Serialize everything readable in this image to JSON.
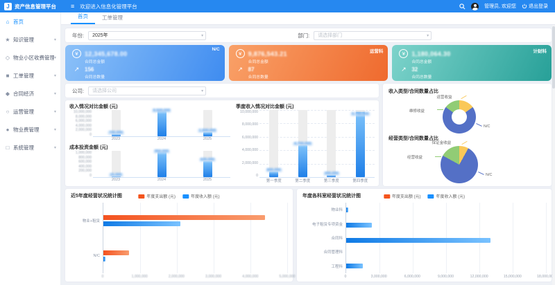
{
  "header": {
    "logo": "J",
    "app_title": "资产信息管理平台",
    "welcome": "欢迎进入信息化管理平台",
    "user": "管理员, 欢迎您",
    "logout": "退出登录"
  },
  "sidebar": {
    "items": [
      {
        "label": "首页",
        "icon": "home-icon",
        "glyph": "⌂",
        "active": true,
        "expandable": false
      },
      {
        "label": "知识管理",
        "icon": "star-icon",
        "glyph": "★",
        "active": false,
        "expandable": true
      },
      {
        "label": "物业小区收费管理",
        "icon": "diamond-outline-icon",
        "glyph": "◇",
        "active": false,
        "expandable": true
      },
      {
        "label": "工单管理",
        "icon": "square-icon",
        "glyph": "■",
        "active": false,
        "expandable": true
      },
      {
        "label": "合同经济",
        "icon": "diamond-icon",
        "glyph": "◆",
        "active": false,
        "expandable": true
      },
      {
        "label": "运营管理",
        "icon": "circle-outline-icon",
        "glyph": "○",
        "active": false,
        "expandable": true
      },
      {
        "label": "物业费管理",
        "icon": "circle-icon",
        "glyph": "●",
        "active": false,
        "expandable": true
      },
      {
        "label": "系统管理",
        "icon": "square-outline-icon",
        "glyph": "□",
        "active": false,
        "expandable": true
      }
    ]
  },
  "tabs": [
    {
      "label": "首页",
      "active": true
    },
    {
      "label": "工单管理",
      "active": false
    }
  ],
  "filters": {
    "year_label": "年份:",
    "year_value": "2025年",
    "dept_label": "部门:",
    "dept_placeholder": "请选择部门",
    "company_label": "公司:",
    "company_placeholder": "请选择公司"
  },
  "stat_cards": [
    {
      "theme": "blue",
      "badge": "N/C",
      "amount": "12,345,678.00",
      "amount_label": "合同总金额",
      "count": "156",
      "count_label": "合同总数量"
    },
    {
      "theme": "orange",
      "badge": "运营科",
      "amount": "9,876,543.21",
      "amount_label": "合同总金额",
      "count": "87",
      "count_label": "合同总数量"
    },
    {
      "theme": "teal",
      "badge": "计财科",
      "amount": "1,180,064.30",
      "amount_label": "合同总金额",
      "count": "32",
      "count_label": "合同总数量"
    }
  ],
  "chart_data": [
    {
      "id": "income-by-year",
      "type": "bar",
      "title": "收入情况对比金额 (元)",
      "categories": [
        "2023",
        "2024",
        "2025"
      ],
      "values": [
        700000,
        9500000,
        1500000
      ],
      "value_labels": [
        "700,000",
        "9,500,000",
        "1,500,000"
      ],
      "ylim": [
        0,
        10000000
      ],
      "yticks": [
        "10,000,000",
        "8,000,000",
        "6,000,000",
        "4,000,000",
        "2,000,000",
        "0"
      ],
      "grid": false,
      "blur_values": true,
      "blur_yticks": true
    },
    {
      "id": "cost-by-year",
      "type": "bar",
      "title": "成本投资金额 (元)",
      "categories": [
        "2023",
        "2024",
        "2025"
      ],
      "values": [
        15000,
        950000,
        600000
      ],
      "value_labels": [
        "15,000",
        "950,000",
        "600,000"
      ],
      "ylim": [
        0,
        1000000
      ],
      "yticks": [
        "1,000,000",
        "800,000",
        "600,000",
        "400,000",
        "200,000",
        "0"
      ],
      "grid": false,
      "blur_values": true,
      "blur_yticks": true
    },
    {
      "id": "quarterly-income",
      "type": "bar",
      "title": "季度收入情况对比金额 (元)",
      "categories": [
        "第一季度",
        "第二季度",
        "第三季度",
        "第四季度"
      ],
      "values": [
        800000,
        4700000,
        300000,
        9700000
      ],
      "value_labels": [
        "800,000",
        "4,700,000",
        "300,000",
        "9,700,000"
      ],
      "ylim": [
        0,
        10000000
      ],
      "yticks": [
        "10,000,000",
        "8,000,000",
        "6,000,000",
        "4,000,000",
        "2,000,000",
        "0"
      ],
      "grid": true,
      "blur_values": true,
      "blur_yticks": false
    },
    {
      "id": "income-pie",
      "type": "pie",
      "donut": true,
      "title": "收入类型/合同数量占比",
      "slices": [
        {
          "label": "运营收益",
          "value": 15,
          "color": "#fac858",
          "label_pos": "top"
        },
        {
          "label": "N/C",
          "value": 70,
          "color": "#5470c6",
          "label_pos": "right"
        },
        {
          "label": "维修收益",
          "value": 15,
          "color": "#91cc75",
          "label_pos": "left"
        }
      ]
    },
    {
      "id": "operation-pie",
      "type": "pie",
      "donut": false,
      "title": "经营类型/合同数量占比",
      "slices": [
        {
          "label": "保证金收益",
          "value": 8,
          "color": "#fac858",
          "label_pos": "top"
        },
        {
          "label": "N/C",
          "value": 75,
          "color": "#5470c6",
          "label_pos": "right"
        },
        {
          "label": "经营收益",
          "value": 17,
          "color": "#91cc75",
          "label_pos": "left"
        }
      ]
    },
    {
      "id": "dept-5year",
      "type": "bar",
      "orientation": "horizontal",
      "title": "近5年度经营状况统计图",
      "legend": [
        "年度支出额 (元)",
        "年度收入额 (元)"
      ],
      "legend_colors": [
        "#f4541d",
        "#1890ff"
      ],
      "categories": [
        "物业+租赁",
        "N/C"
      ],
      "series": [
        {
          "name": "年度支出额 (元)",
          "values": [
            4400000,
            700000
          ]
        },
        {
          "name": "年度收入额 (元)",
          "values": [
            2100000,
            60000
          ]
        }
      ],
      "xlim": [
        0,
        5000000
      ],
      "xticks": [
        "0",
        "1,000,000",
        "2,000,000",
        "3,000,000",
        "4,000,000",
        "5,000,000"
      ],
      "blur_xticks": true
    },
    {
      "id": "dept-detail",
      "type": "bar",
      "orientation": "horizontal",
      "title": "年度各科室经营状况统计图",
      "legend": [
        "年度支出额 (元)",
        "年度收入额 (元)"
      ],
      "legend_colors": [
        "#f4541d",
        "#1890ff"
      ],
      "categories": [
        "物业科",
        "电子租赁专项资金",
        "合同科",
        "合同管理科",
        "工程科"
      ],
      "series": [
        {
          "name": "年度支出额 (元)",
          "values": [
            0,
            0,
            0,
            0,
            0
          ]
        },
        {
          "name": "年度收入额 (元)",
          "values": [
            200000,
            2300000,
            13000000,
            0,
            1500000
          ]
        }
      ],
      "xlim": [
        0,
        18000000
      ],
      "xticks": [
        "0",
        "3,000,000",
        "6,000,000",
        "9,000,000",
        "12,000,000",
        "15,000,000",
        "18,000,000"
      ],
      "blur_xticks": false
    }
  ]
}
